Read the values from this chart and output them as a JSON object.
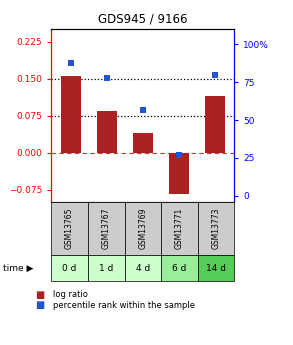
{
  "title": "GDS945 / 9166",
  "samples": [
    "GSM13765",
    "GSM13767",
    "GSM13769",
    "GSM13771",
    "GSM13773"
  ],
  "time_labels": [
    "0 d",
    "1 d",
    "4 d",
    "6 d",
    "14 d"
  ],
  "log_ratios": [
    0.155,
    0.085,
    0.04,
    -0.085,
    0.115
  ],
  "percentile_ranks": [
    88,
    78,
    57,
    27,
    80
  ],
  "bar_color": "#aa2222",
  "dot_color": "#2255cc",
  "ylim_left": [
    -0.1,
    0.25
  ],
  "ylim_right": [
    -4,
    110
  ],
  "yticks_left": [
    -0.075,
    0,
    0.075,
    0.15,
    0.225
  ],
  "yticks_right": [
    0,
    25,
    50,
    75,
    100
  ],
  "ytick_labels_right": [
    "0",
    "25",
    "50",
    "75",
    "100%"
  ],
  "hline_y": [
    0.075,
    0.15
  ],
  "sample_box_color": "#cccccc",
  "time_box_colors": [
    "#ccffcc",
    "#ccffcc",
    "#ccffcc",
    "#99ee99",
    "#55cc55"
  ],
  "bar_width": 0.55,
  "background_color": "#ffffff"
}
